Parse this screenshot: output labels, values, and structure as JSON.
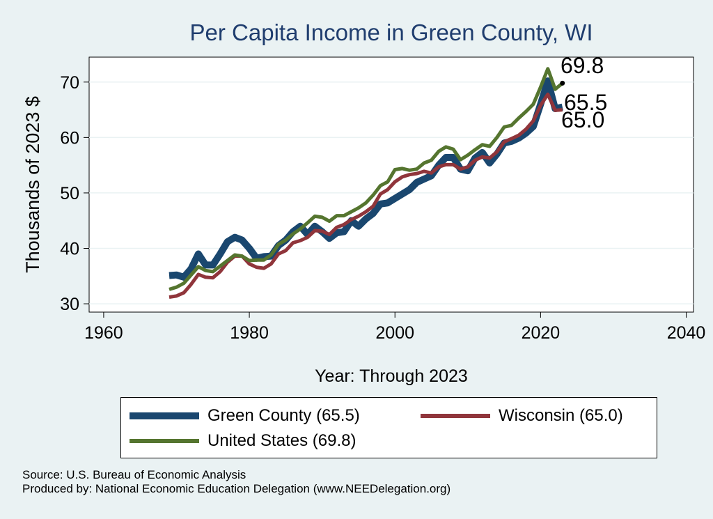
{
  "chart_data": {
    "type": "line",
    "title": "Per Capita Income in Green County, WI",
    "xlabel": "Year: Through 2023",
    "ylabel": "Thousands of 2023 $",
    "xlim": [
      1958,
      2041
    ],
    "ylim": [
      28.5,
      74.5
    ],
    "xticks": [
      1960,
      1980,
      2000,
      2020,
      2040
    ],
    "yticks": [
      30,
      40,
      50,
      60,
      70
    ],
    "grid": true,
    "legend_position": "bottom",
    "x": [
      1969,
      1970,
      1971,
      1972,
      1973,
      1974,
      1975,
      1976,
      1977,
      1978,
      1979,
      1980,
      1981,
      1982,
      1983,
      1984,
      1985,
      1986,
      1987,
      1988,
      1989,
      1990,
      1991,
      1992,
      1993,
      1994,
      1995,
      1996,
      1997,
      1998,
      1999,
      2000,
      2001,
      2002,
      2003,
      2004,
      2005,
      2006,
      2007,
      2008,
      2009,
      2010,
      2011,
      2012,
      2013,
      2014,
      2015,
      2016,
      2017,
      2018,
      2019,
      2020,
      2021,
      2022,
      2023
    ],
    "series": [
      {
        "name": "Green County (65.5)",
        "color": "#1A476F",
        "values": [
          35.1,
          35.2,
          34.8,
          36.3,
          39.0,
          37.0,
          37.0,
          39.0,
          41.2,
          42.0,
          41.5,
          40.0,
          38.2,
          38.5,
          38.6,
          40.5,
          41.5,
          43.0,
          44.0,
          42.5,
          44.0,
          43.0,
          41.8,
          42.8,
          43.0,
          45.0,
          44.0,
          45.3,
          46.3,
          48.0,
          48.2,
          49.0,
          49.8,
          50.6,
          51.9,
          52.5,
          53.1,
          55.0,
          56.4,
          56.4,
          54.3,
          54.0,
          56.3,
          57.3,
          55.4,
          57.0,
          59.0,
          59.3,
          59.9,
          60.8,
          62.0,
          66.0,
          70.2,
          65.2,
          65.5
        ]
      },
      {
        "name": "Wisconsin (65.0)",
        "color": "#90353B",
        "values": [
          31.2,
          31.4,
          32.0,
          33.5,
          35.3,
          34.8,
          34.7,
          35.8,
          37.5,
          38.6,
          38.6,
          37.2,
          36.6,
          36.4,
          37.2,
          39.0,
          39.6,
          41.0,
          41.4,
          42.0,
          43.2,
          43.1,
          42.5,
          43.8,
          44.3,
          45.2,
          45.8,
          46.6,
          47.6,
          49.8,
          50.6,
          52.0,
          52.9,
          53.3,
          53.5,
          53.9,
          53.6,
          54.7,
          55.1,
          55.1,
          54.3,
          54.7,
          55.9,
          56.5,
          56.3,
          57.4,
          59.2,
          59.8,
          60.4,
          61.5,
          63.0,
          65.8,
          67.8,
          64.9,
          65.0
        ]
      },
      {
        "name": "United States (69.8)",
        "color": "#55752F",
        "values": [
          32.6,
          33.0,
          33.7,
          35.2,
          36.7,
          36.0,
          35.8,
          36.8,
          37.8,
          38.8,
          38.6,
          37.8,
          37.9,
          37.9,
          38.8,
          40.7,
          41.5,
          42.6,
          43.5,
          44.6,
          45.8,
          45.6,
          44.9,
          45.9,
          45.9,
          46.6,
          47.3,
          48.2,
          49.6,
          51.3,
          52.0,
          54.2,
          54.4,
          54.1,
          54.3,
          55.4,
          55.9,
          57.5,
          58.3,
          57.9,
          56.0,
          56.8,
          57.8,
          58.7,
          58.4,
          60.0,
          61.9,
          62.2,
          63.5,
          64.7,
          66.0,
          69.1,
          72.4,
          68.7,
          69.8
        ]
      }
    ],
    "end_labels": [
      "69.8",
      "65.5",
      "65.0"
    ]
  },
  "source_notes": {
    "source": "Source: U.S. Bureau of Economic Analysis",
    "produced_by": "Produced by: National Economic Education Delegation (www.NEEDelegation.org)"
  }
}
